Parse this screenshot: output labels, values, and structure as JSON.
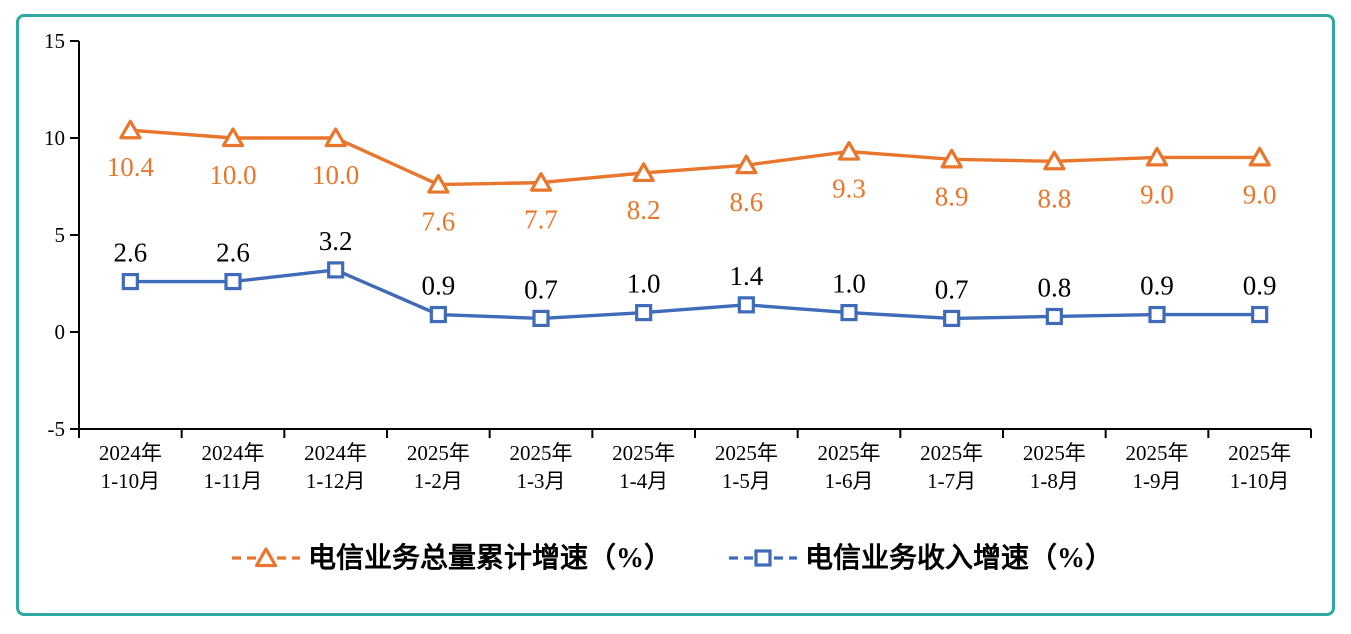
{
  "frame": {
    "border_color": "#2EA8A0"
  },
  "chart_data": {
    "type": "line",
    "categories": [
      {
        "line1": "2024年",
        "line2": "1-10月"
      },
      {
        "line1": "2024年",
        "line2": "1-11月"
      },
      {
        "line1": "2024年",
        "line2": "1-12月"
      },
      {
        "line1": "2025年",
        "line2": "1-2月"
      },
      {
        "line1": "2025年",
        "line2": "1-3月"
      },
      {
        "line1": "2025年",
        "line2": "1-4月"
      },
      {
        "line1": "2025年",
        "line2": "1-5月"
      },
      {
        "line1": "2025年",
        "line2": "1-6月"
      },
      {
        "line1": "2025年",
        "line2": "1-7月"
      },
      {
        "line1": "2025年",
        "line2": "1-8月"
      },
      {
        "line1": "2025年",
        "line2": "1-9月"
      },
      {
        "line1": "2025年",
        "line2": "1-10月"
      }
    ],
    "ylim": [
      -5,
      15
    ],
    "yticks": [
      -5,
      0,
      5,
      10,
      15
    ],
    "grid": false,
    "legend_position": "bottom",
    "value_format": "one_decimal",
    "series": [
      {
        "name": "电信业务总量累计增速（%）",
        "color": "#E8762C",
        "label_color": "#E8762C",
        "marker": "triangle",
        "label_position": "below",
        "values": [
          10.4,
          10.0,
          10.0,
          7.6,
          7.7,
          8.2,
          8.6,
          9.3,
          8.9,
          8.8,
          9.0,
          9.0
        ]
      },
      {
        "name": "电信业务收入增速（%）",
        "color": "#3F6BB8",
        "label_color": "#000000",
        "marker": "square",
        "label_position": "above",
        "values": [
          2.6,
          2.6,
          3.2,
          0.9,
          0.7,
          1.0,
          1.4,
          1.0,
          0.7,
          0.8,
          0.9,
          0.9
        ]
      }
    ]
  }
}
